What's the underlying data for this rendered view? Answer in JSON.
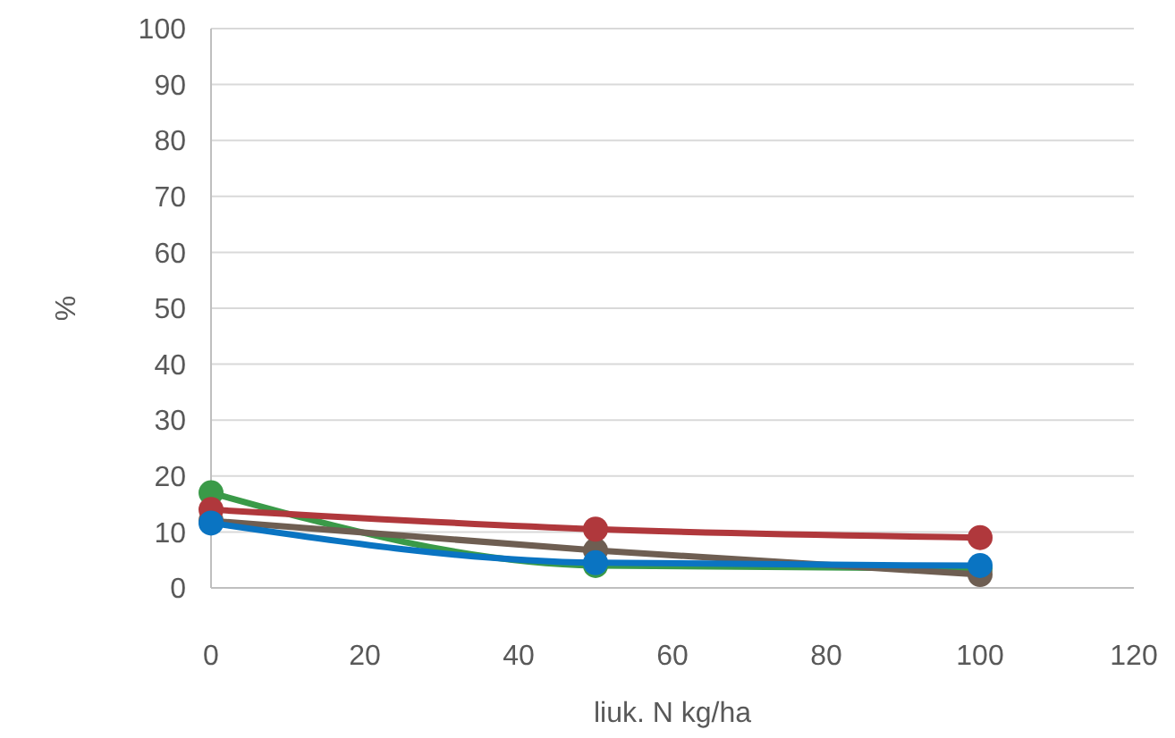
{
  "chart_data": {
    "type": "line",
    "xlabel": "liuk. N kg/ha",
    "ylabel": "%",
    "x": [
      0,
      50,
      100
    ],
    "series": [
      {
        "color": "#3a9a48",
        "values": [
          17,
          4,
          3.5
        ]
      },
      {
        "color": "#6e5e52",
        "values": [
          12,
          6.7,
          2.4
        ]
      },
      {
        "color": "#b0383c",
        "values": [
          14,
          10.5,
          9
        ]
      },
      {
        "color": "#0a74c2",
        "values": [
          11.6,
          4.5,
          4
        ]
      }
    ],
    "xlim": [
      0,
      120
    ],
    "xticks": [
      0,
      20,
      40,
      60,
      80,
      100,
      120
    ],
    "ylim": [
      0,
      100
    ],
    "yticks": [
      0,
      10,
      20,
      30,
      40,
      50,
      60,
      70,
      80,
      90,
      100
    ],
    "grid": "y",
    "marker": "circle"
  }
}
